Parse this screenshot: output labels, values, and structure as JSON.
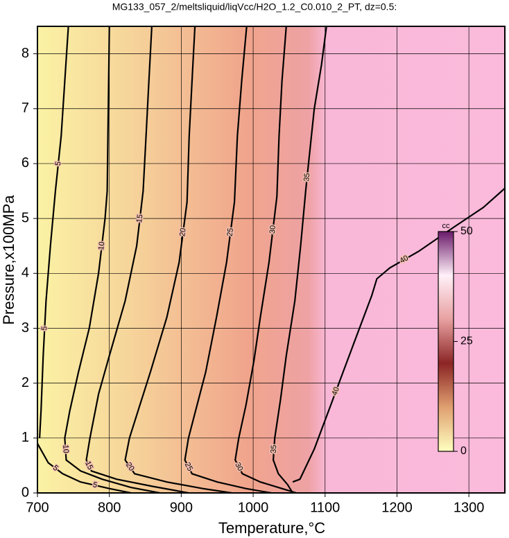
{
  "chart_data": {
    "type": "contour",
    "title": "MG133_057_2/meltsliquid/liqVcc/H2O_1.2_C0.010_2_PT, dz=0.5:",
    "x_label": "Temperature,°C",
    "y_label": "Pressure,x100MPa",
    "xlim": [
      700,
      1350
    ],
    "ylim": [
      0,
      8.5
    ],
    "xticks": [
      700,
      800,
      900,
      1000,
      1100,
      1200,
      1300
    ],
    "yticks": [
      0,
      1,
      2,
      3,
      4,
      5,
      6,
      7,
      8
    ],
    "grid": true,
    "contours": [
      {
        "level": 5,
        "x": [
          743,
          738,
          733,
          725,
          718,
          712,
          708,
          705,
          703,
          null,
          700,
          715,
          735,
          760,
          800,
          830
        ],
        "y": [
          8.5,
          7.5,
          6.5,
          5.5,
          4.5,
          3.5,
          2.5,
          1.5,
          1.0,
          null,
          0.9,
          0.55,
          0.35,
          0.2,
          0.08,
          0
        ]
      },
      {
        "level": 10,
        "x": [
          800,
          799,
          798,
          797,
          794,
          785,
          772,
          757,
          745,
          738,
          740,
          760,
          790,
          830,
          870
        ],
        "y": [
          8.5,
          7.5,
          6.5,
          5.5,
          5.0,
          4.0,
          3.0,
          2.2,
          1.5,
          1.0,
          0.6,
          0.4,
          0.25,
          0.1,
          0
        ]
      },
      {
        "level": 15,
        "x": [
          859,
          855,
          851,
          847,
          838,
          822,
          800,
          785,
          773,
          768,
          775,
          810,
          860,
          910
        ],
        "y": [
          8.5,
          7.5,
          6.5,
          5.5,
          4.5,
          3.5,
          2.5,
          1.8,
          1.0,
          0.6,
          0.4,
          0.25,
          0.12,
          0
        ]
      },
      {
        "level": 20,
        "x": [
          919,
          915,
          911,
          908,
          897,
          880,
          857,
          840,
          828,
          822,
          835,
          880,
          930,
          970
        ],
        "y": [
          8.5,
          7.5,
          6.5,
          5.3,
          4.2,
          3.2,
          2.2,
          1.5,
          1.0,
          0.6,
          0.35,
          0.2,
          0.08,
          0
        ]
      },
      {
        "level": 25,
        "x": [
          991,
          984,
          978,
          974,
          963,
          949,
          934,
          920,
          910,
          905,
          915,
          950,
          990,
          1025
        ],
        "y": [
          8.5,
          7.5,
          6.5,
          5.3,
          4.2,
          3.2,
          2.2,
          1.5,
          1.0,
          0.6,
          0.35,
          0.2,
          0.08,
          0
        ]
      },
      {
        "level": 30,
        "x": [
          1046,
          1040,
          1036,
          1033,
          1022,
          1010,
          1001,
          990,
          980,
          975,
          985,
          1010,
          1040,
          1060
        ],
        "y": [
          8.5,
          7.5,
          6.5,
          5.4,
          4.2,
          3.2,
          2.4,
          1.6,
          1.0,
          0.6,
          0.35,
          0.2,
          0.08,
          0
        ]
      },
      {
        "level": 35,
        "x": [
          1102,
          1095,
          1085,
          1077,
          1073,
          1066,
          1058,
          1046,
          1038,
          1030,
          1028,
          1035,
          1048,
          1055
        ],
        "y": [
          8.5,
          7.8,
          7.0,
          6.0,
          5.5,
          4.5,
          3.5,
          2.5,
          1.7,
          1.0,
          0.6,
          0.35,
          0.15,
          0
        ]
      },
      {
        "level": 40,
        "x": [
          1055,
          1065,
          1085,
          1105,
          1125,
          1145,
          1165,
          1172,
          1190,
          1230,
          1280,
          1320,
          1350
        ],
        "y": [
          0.2,
          0.25,
          0.8,
          1.5,
          2.2,
          2.9,
          3.6,
          3.9,
          4.1,
          4.4,
          4.85,
          5.2,
          5.55
        ]
      }
    ],
    "colorbar": {
      "label": "cc",
      "lim": [
        0,
        50
      ],
      "ticks": [
        0,
        25,
        50
      ],
      "colors": [
        "#ffffc0",
        "#e0a070",
        "#8b2525",
        "#e8a0a0",
        "#fff0f8",
        "#6a1a6a"
      ]
    }
  }
}
